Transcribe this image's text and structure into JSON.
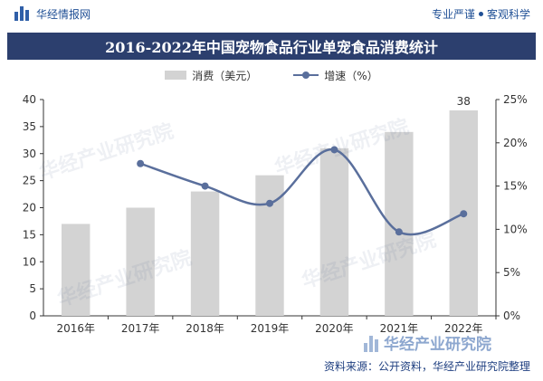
{
  "header": {
    "brand": "华经情报网",
    "slogan_left": "专业严谨",
    "slogan_right": "客观科学"
  },
  "watermark_text": "华经产业研究院",
  "chart_data": {
    "type": "bar+line",
    "title": "2016-2022年中国宠物食品行业单宠食品消费统计",
    "categories": [
      "2016年",
      "2017年",
      "2018年",
      "2019年",
      "2020年",
      "2021年",
      "2022年"
    ],
    "series": [
      {
        "name": "消费（美元）",
        "type": "bar",
        "axis": "left",
        "values": [
          17,
          20,
          23,
          26,
          31,
          34,
          38
        ],
        "color": "#d3d3d3",
        "data_labels": {
          "6": "38"
        }
      },
      {
        "name": "增速（%）",
        "type": "line",
        "axis": "right",
        "values": [
          null,
          17.6,
          15.0,
          13.0,
          19.2,
          9.7,
          11.8
        ],
        "color": "#5a6f9c",
        "smooth": true
      }
    ],
    "left_axis": {
      "ylim": [
        0,
        40
      ],
      "ticks": [
        "0",
        "5",
        "10",
        "15",
        "20",
        "25",
        "30",
        "35",
        "40"
      ]
    },
    "right_axis": {
      "ylim": [
        0,
        25
      ],
      "ticks": [
        "0%",
        "5%",
        "10%",
        "15%",
        "20%",
        "25%"
      ]
    },
    "legend_position": "top-center",
    "grid": false
  },
  "footer": {
    "source": "资料来源：公开资料，华经产业研究院整理"
  }
}
